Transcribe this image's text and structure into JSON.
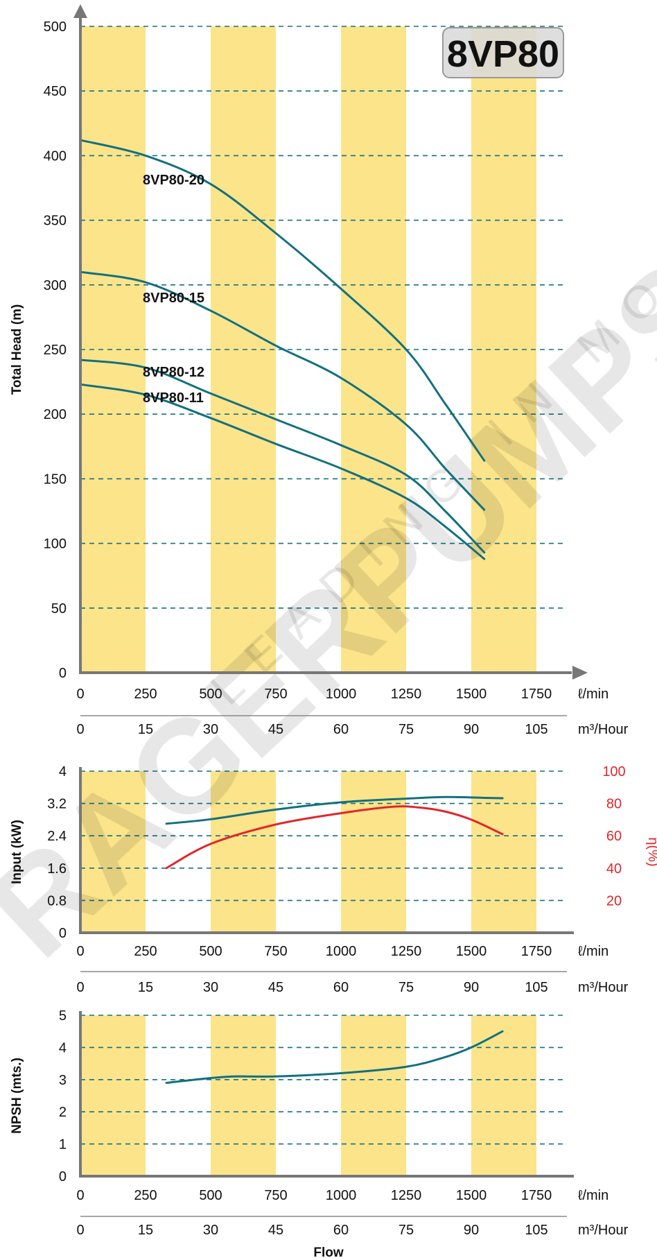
{
  "watermark": {
    "brand": "RAGERPUMPS",
    "tagline": "LEADING IN MOTION"
  },
  "model": "8VP80",
  "colors": {
    "band": "#fbe48a",
    "curve": "#13707f",
    "efficiency": "#e0262b",
    "grid": "#13707f",
    "axis": "#777777"
  },
  "x_axis": {
    "lpm_ticks": [
      "0",
      "250",
      "500",
      "750",
      "1000",
      "1250",
      "1500",
      "1750"
    ],
    "lpm_unit": "ℓ/min",
    "m3h_ticks": [
      "0",
      "15",
      "30",
      "45",
      "60",
      "75",
      "90",
      "105"
    ],
    "m3h_unit": "m³/Hour",
    "title": "Flow"
  },
  "chart_data": [
    {
      "type": "line",
      "ylabel": "Total Head (m)",
      "xlabel": "Flow",
      "xlim": [
        0,
        1850
      ],
      "ylim": [
        0,
        500
      ],
      "yticks": [
        "0",
        "50",
        "100",
        "150",
        "200",
        "250",
        "300",
        "350",
        "400",
        "450",
        "500"
      ],
      "grid": true,
      "series": [
        {
          "name": "8VP80-20",
          "points": [
            [
              0,
              412
            ],
            [
              250,
              400
            ],
            [
              500,
              378
            ],
            [
              750,
              340
            ],
            [
              1000,
              297
            ],
            [
              1250,
              250
            ],
            [
              1400,
              208
            ],
            [
              1550,
              164
            ]
          ]
        },
        {
          "name": "8VP80-15",
          "points": [
            [
              0,
              310
            ],
            [
              250,
              302
            ],
            [
              500,
              280
            ],
            [
              750,
              253
            ],
            [
              1000,
              228
            ],
            [
              1250,
              192
            ],
            [
              1400,
              158
            ],
            [
              1550,
              126
            ]
          ]
        },
        {
          "name": "8VP80-12",
          "points": [
            [
              0,
              242
            ],
            [
              250,
              236
            ],
            [
              500,
              216
            ],
            [
              750,
              196
            ],
            [
              1000,
              176
            ],
            [
              1250,
              153
            ],
            [
              1400,
              125
            ],
            [
              1550,
              93
            ]
          ]
        },
        {
          "name": "8VP80-11",
          "points": [
            [
              0,
              223
            ],
            [
              250,
              215
            ],
            [
              500,
              197
            ],
            [
              750,
              177
            ],
            [
              1000,
              158
            ],
            [
              1250,
              135
            ],
            [
              1400,
              113
            ],
            [
              1550,
              88
            ]
          ]
        }
      ]
    },
    {
      "type": "line",
      "ylabel": "Input (kW)",
      "ylabel_right": "η(%)",
      "xlim": [
        0,
        1850
      ],
      "ylim": [
        0,
        4
      ],
      "yticks": [
        "0",
        "0.8",
        "1.6",
        "2.4",
        "3.2",
        "4"
      ],
      "y2lim": [
        0,
        100
      ],
      "y2ticks": [
        "20",
        "40",
        "60",
        "80",
        "100"
      ],
      "grid": true,
      "series": [
        {
          "name": "",
          "axis": "left",
          "points": [
            [
              330,
              2.7
            ],
            [
              500,
              2.81
            ],
            [
              750,
              3.05
            ],
            [
              1000,
              3.23
            ],
            [
              1250,
              3.32
            ],
            [
              1400,
              3.36
            ],
            [
              1550,
              3.34
            ],
            [
              1620,
              3.33
            ]
          ]
        },
        {
          "name": "",
          "axis": "right",
          "points": [
            [
              330,
              40
            ],
            [
              500,
              55
            ],
            [
              750,
              67
            ],
            [
              1000,
              74
            ],
            [
              1200,
              78
            ],
            [
              1300,
              77.5
            ],
            [
              1400,
              75
            ],
            [
              1500,
              70
            ],
            [
              1620,
              61
            ]
          ]
        }
      ]
    },
    {
      "type": "line",
      "ylabel": "NPSH (mts.)",
      "xlabel": "Flow",
      "xlim": [
        0,
        1850
      ],
      "ylim": [
        0,
        5
      ],
      "yticks": [
        "0",
        "1",
        "2",
        "3",
        "4",
        "5"
      ],
      "grid": true,
      "series": [
        {
          "name": "",
          "points": [
            [
              330,
              2.9
            ],
            [
              500,
              3.05
            ],
            [
              600,
              3.1
            ],
            [
              750,
              3.1
            ],
            [
              1000,
              3.2
            ],
            [
              1250,
              3.4
            ],
            [
              1400,
              3.7
            ],
            [
              1500,
              4.0
            ],
            [
              1620,
              4.5
            ]
          ]
        }
      ]
    }
  ]
}
